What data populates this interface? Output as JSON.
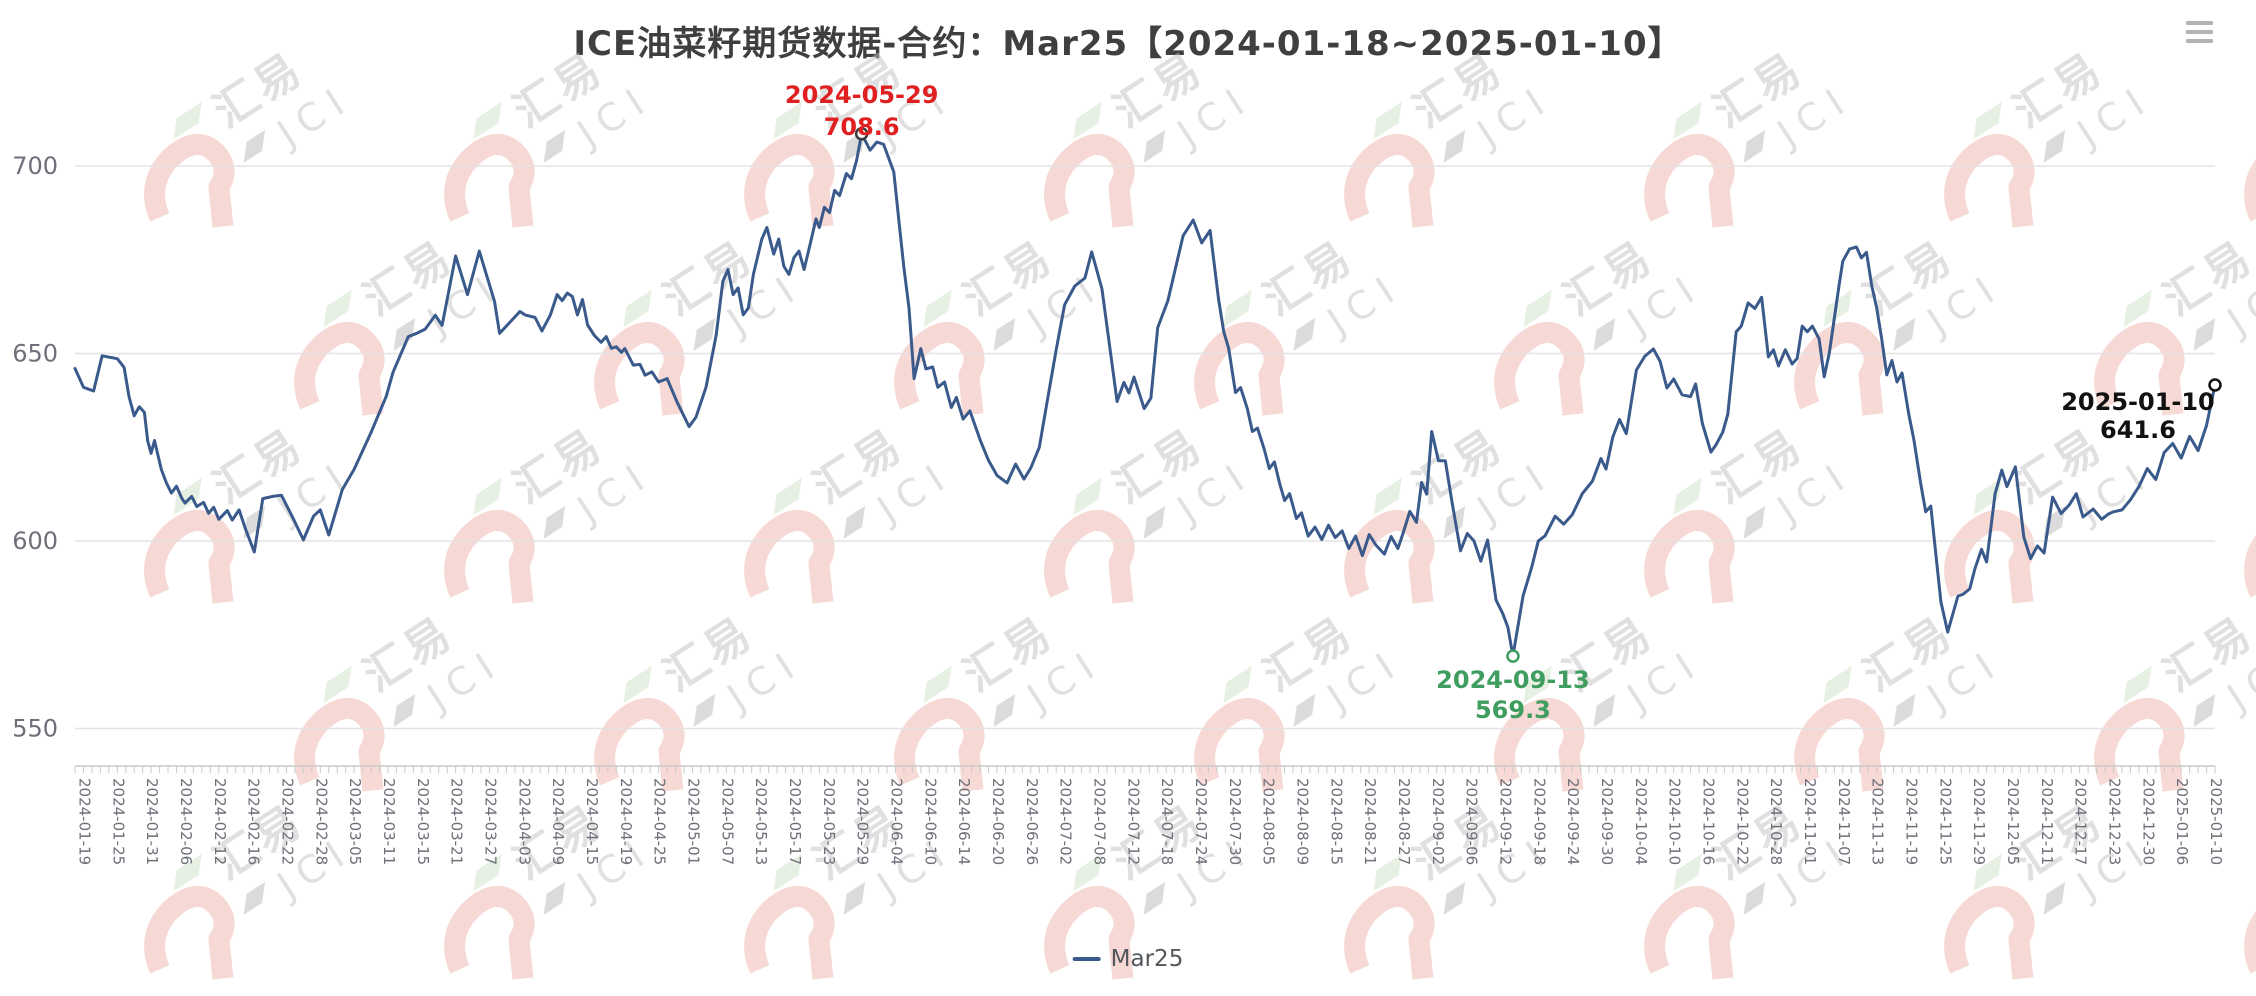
{
  "header": {
    "title": "ICE油菜籽期货数据-合约：Mar25【2024-01-18~2025-01-10】"
  },
  "toolbar": {
    "menu_icon": "hamburger-menu-icon"
  },
  "legend": {
    "label": "Mar25"
  },
  "watermark": {
    "brand_cn": "汇易",
    "brand_en": "JCI"
  },
  "chart_data": {
    "type": "line",
    "title": "ICE油菜籽期货数据-合约：Mar25【2024-01-18~2025-01-10】",
    "series_name": "Mar25",
    "xlabel": "",
    "ylabel": "",
    "ylim": [
      540,
      710
    ],
    "y_ticks": [
      550,
      600,
      650,
      700
    ],
    "grid": true,
    "legend_position": "bottom",
    "colors": {
      "line": "#3a5a8c",
      "max_annotation": "#e02020",
      "min_annotation": "#3f9d60",
      "last_annotation": "#111111",
      "axis_label": "#6e7079",
      "grid_line": "#e3e3e3",
      "axis_line": "#c9c9c9",
      "watermark_pink": "#efb3ab",
      "watermark_gray": "#c2c2c2",
      "watermark_green": "#cfe4c9"
    },
    "annotations": {
      "max": {
        "date": "2024-05-29",
        "value": 708.6,
        "i": 23
      },
      "min": {
        "date": "2024-09-13",
        "value": 569.3,
        "i": 42.25
      },
      "last": {
        "date": "2025-01-10",
        "value": 641.6,
        "i": 63
      }
    },
    "x_labels": [
      "2024-01-19",
      "2024-01-25",
      "2024-01-31",
      "2024-02-06",
      "2024-02-12",
      "2024-02-16",
      "2024-02-22",
      "2024-02-28",
      "2024-03-05",
      "2024-03-11",
      "2024-03-15",
      "2024-03-21",
      "2024-03-27",
      "2024-04-03",
      "2024-04-09",
      "2024-04-15",
      "2024-04-19",
      "2024-04-25",
      "2024-05-01",
      "2024-05-07",
      "2024-05-13",
      "2024-05-17",
      "2024-05-23",
      "2024-05-29",
      "2024-06-04",
      "2024-06-10",
      "2024-06-14",
      "2024-06-20",
      "2024-06-26",
      "2024-07-02",
      "2024-07-08",
      "2024-07-12",
      "2024-07-18",
      "2024-07-24",
      "2024-07-30",
      "2024-08-05",
      "2024-08-09",
      "2024-08-15",
      "2024-08-21",
      "2024-08-27",
      "2024-09-02",
      "2024-09-06",
      "2024-09-12",
      "2024-09-18",
      "2024-09-24",
      "2024-09-30",
      "2024-10-04",
      "2024-10-10",
      "2024-10-16",
      "2024-10-22",
      "2024-10-28",
      "2024-11-01",
      "2024-11-07",
      "2024-11-13",
      "2024-11-19",
      "2024-11-25",
      "2024-11-29",
      "2024-12-05",
      "2024-12-11",
      "2024-12-17",
      "2024-12-23",
      "2024-12-30",
      "2025-01-06",
      "2025-01-10"
    ],
    "points": [
      [
        -0.25,
        646
      ],
      [
        0,
        641
      ],
      [
        0.3,
        640
      ],
      [
        0.55,
        649.4
      ],
      [
        1,
        648.6
      ],
      [
        1.2,
        646.3
      ],
      [
        1.35,
        638.4
      ],
      [
        1.5,
        633.4
      ],
      [
        1.65,
        635.8
      ],
      [
        1.8,
        634.3
      ],
      [
        1.9,
        626.7
      ],
      [
        2,
        623.4
      ],
      [
        2.1,
        626.8
      ],
      [
        2.3,
        619.1
      ],
      [
        2.45,
        615.5
      ],
      [
        2.6,
        612.8
      ],
      [
        2.75,
        614.6
      ],
      [
        2.9,
        611.5
      ],
      [
        3,
        610.1
      ],
      [
        3.2,
        611.9
      ],
      [
        3.35,
        609.2
      ],
      [
        3.55,
        610.3
      ],
      [
        3.7,
        607.4
      ],
      [
        3.85,
        609
      ],
      [
        4,
        605.8
      ],
      [
        4.25,
        608.1
      ],
      [
        4.4,
        605.6
      ],
      [
        4.6,
        608.3
      ],
      [
        4.8,
        602.9
      ],
      [
        5.05,
        597.1
      ],
      [
        5.3,
        611.3
      ],
      [
        5.6,
        611.9
      ],
      [
        5.85,
        612.2
      ],
      [
        6.2,
        606
      ],
      [
        6.5,
        600.3
      ],
      [
        6.8,
        606.6
      ],
      [
        7,
        608.3
      ],
      [
        7.25,
        601.6
      ],
      [
        7.65,
        613.7
      ],
      [
        8,
        619.1
      ],
      [
        8.5,
        628.9
      ],
      [
        8.95,
        638.6
      ],
      [
        9.15,
        645
      ],
      [
        9.6,
        654.5
      ],
      [
        9.85,
        655.4
      ],
      [
        10.1,
        656.5
      ],
      [
        10.4,
        660.2
      ],
      [
        10.6,
        657.5
      ],
      [
        11,
        676
      ],
      [
        11.35,
        665.7
      ],
      [
        11.7,
        677.3
      ],
      [
        12.15,
        663.9
      ],
      [
        12.3,
        655.4
      ],
      [
        12.6,
        658.3
      ],
      [
        12.9,
        661.2
      ],
      [
        13.05,
        660.3
      ],
      [
        13.35,
        659.6
      ],
      [
        13.55,
        656
      ],
      [
        13.8,
        660.3
      ],
      [
        14,
        665.7
      ],
      [
        14.15,
        664.1
      ],
      [
        14.3,
        666.1
      ],
      [
        14.45,
        665.2
      ],
      [
        14.6,
        660.3
      ],
      [
        14.75,
        664.4
      ],
      [
        14.9,
        657.6
      ],
      [
        15.1,
        654.8
      ],
      [
        15.3,
        653
      ],
      [
        15.45,
        654.5
      ],
      [
        15.6,
        651.4
      ],
      [
        15.75,
        651.8
      ],
      [
        15.9,
        650.3
      ],
      [
        16,
        651.3
      ],
      [
        16.25,
        646.9
      ],
      [
        16.45,
        647.1
      ],
      [
        16.6,
        644.2
      ],
      [
        16.8,
        645.1
      ],
      [
        17,
        642.4
      ],
      [
        17.25,
        643.3
      ],
      [
        17.55,
        637
      ],
      [
        17.9,
        630.5
      ],
      [
        18.1,
        633
      ],
      [
        18.4,
        641
      ],
      [
        18.7,
        654.9
      ],
      [
        18.9,
        669.3
      ],
      [
        19.05,
        672.4
      ],
      [
        19.2,
        665.7
      ],
      [
        19.35,
        667.5
      ],
      [
        19.5,
        660.3
      ],
      [
        19.65,
        662.1
      ],
      [
        19.8,
        671.1
      ],
      [
        20.05,
        680.5
      ],
      [
        20.2,
        683.6
      ],
      [
        20.4,
        676.5
      ],
      [
        20.55,
        680.5
      ],
      [
        20.7,
        673.3
      ],
      [
        20.85,
        671.1
      ],
      [
        21,
        675.6
      ],
      [
        21.15,
        677.3
      ],
      [
        21.3,
        672.4
      ],
      [
        21.5,
        680
      ],
      [
        21.65,
        685.9
      ],
      [
        21.75,
        683.6
      ],
      [
        21.9,
        689
      ],
      [
        22.05,
        687.6
      ],
      [
        22.2,
        693.5
      ],
      [
        22.35,
        692.1
      ],
      [
        22.55,
        698
      ],
      [
        22.7,
        696.6
      ],
      [
        22.85,
        701.5
      ],
      [
        23,
        708.6
      ],
      [
        23.25,
        704.2
      ],
      [
        23.45,
        706.4
      ],
      [
        23.65,
        705.8
      ],
      [
        23.95,
        698.4
      ],
      [
        24.1,
        685.4
      ],
      [
        24.25,
        672.9
      ],
      [
        24.4,
        662.1
      ],
      [
        24.55,
        643.3
      ],
      [
        24.75,
        651.3
      ],
      [
        24.9,
        645.9
      ],
      [
        25.1,
        646.4
      ],
      [
        25.25,
        641
      ],
      [
        25.45,
        642.4
      ],
      [
        25.65,
        635.6
      ],
      [
        25.8,
        638.3
      ],
      [
        26,
        632.5
      ],
      [
        26.2,
        634.7
      ],
      [
        26.5,
        627
      ],
      [
        26.75,
        621.5
      ],
      [
        27,
        617.5
      ],
      [
        27.3,
        615.5
      ],
      [
        27.55,
        620.5
      ],
      [
        27.8,
        616.5
      ],
      [
        28,
        619.5
      ],
      [
        28.25,
        625
      ],
      [
        28.5,
        638
      ],
      [
        28.75,
        651
      ],
      [
        29,
        663
      ],
      [
        29.3,
        668
      ],
      [
        29.6,
        670.1
      ],
      [
        29.8,
        677.1
      ],
      [
        30.1,
        667.3
      ],
      [
        30.55,
        637.2
      ],
      [
        30.75,
        642.3
      ],
      [
        30.9,
        639.5
      ],
      [
        31.05,
        643.7
      ],
      [
        31.35,
        635.3
      ],
      [
        31.55,
        638.1
      ],
      [
        31.75,
        656.9
      ],
      [
        32.05,
        664
      ],
      [
        32.5,
        681.4
      ],
      [
        32.8,
        685.6
      ],
      [
        33.05,
        679.5
      ],
      [
        33.3,
        682.8
      ],
      [
        33.55,
        664.4
      ],
      [
        33.7,
        655.9
      ],
      [
        33.85,
        651.3
      ],
      [
        34.05,
        639.6
      ],
      [
        34.2,
        640.9
      ],
      [
        34.4,
        635.3
      ],
      [
        34.55,
        629.2
      ],
      [
        34.7,
        630.1
      ],
      [
        34.9,
        624.4
      ],
      [
        35.05,
        619.3
      ],
      [
        35.2,
        621.1
      ],
      [
        35.35,
        615.5
      ],
      [
        35.5,
        610.8
      ],
      [
        35.65,
        612.6
      ],
      [
        35.85,
        606
      ],
      [
        36,
        607.5
      ],
      [
        36.2,
        601.3
      ],
      [
        36.4,
        603.7
      ],
      [
        36.6,
        600.4
      ],
      [
        36.8,
        604.2
      ],
      [
        37,
        600.9
      ],
      [
        37.2,
        602.7
      ],
      [
        37.4,
        598
      ],
      [
        37.6,
        601.3
      ],
      [
        37.8,
        596.1
      ],
      [
        38,
        601.7
      ],
      [
        38.2,
        598.9
      ],
      [
        38.45,
        596.5
      ],
      [
        38.65,
        601.2
      ],
      [
        38.85,
        598
      ],
      [
        39,
        602
      ],
      [
        39.2,
        607.9
      ],
      [
        39.4,
        605
      ],
      [
        39.55,
        615.6
      ],
      [
        39.7,
        612.5
      ],
      [
        39.85,
        629.2
      ],
      [
        40.05,
        621.4
      ],
      [
        40.25,
        621.4
      ],
      [
        40.45,
        610.4
      ],
      [
        40.7,
        597.4
      ],
      [
        40.9,
        602
      ],
      [
        41.1,
        600
      ],
      [
        41.3,
        594.6
      ],
      [
        41.5,
        600.3
      ],
      [
        41.75,
        584.3
      ],
      [
        41.95,
        580.6
      ],
      [
        42.1,
        577
      ],
      [
        42.25,
        569.3
      ],
      [
        42.55,
        585.4
      ],
      [
        42.8,
        592.9
      ],
      [
        43,
        600
      ],
      [
        43.2,
        601.4
      ],
      [
        43.5,
        606.6
      ],
      [
        43.75,
        604.5
      ],
      [
        44,
        607
      ],
      [
        44.3,
        612.6
      ],
      [
        44.6,
        616
      ],
      [
        44.85,
        622
      ],
      [
        45,
        619.2
      ],
      [
        45.2,
        627.7
      ],
      [
        45.4,
        632.4
      ],
      [
        45.6,
        628.6
      ],
      [
        45.9,
        645.6
      ],
      [
        46.15,
        649.3
      ],
      [
        46.4,
        651.2
      ],
      [
        46.6,
        647.9
      ],
      [
        46.8,
        640.8
      ],
      [
        47,
        643.2
      ],
      [
        47.25,
        639
      ],
      [
        47.5,
        638.5
      ],
      [
        47.65,
        641.9
      ],
      [
        47.85,
        631.3
      ],
      [
        48.1,
        623.7
      ],
      [
        48.25,
        625.6
      ],
      [
        48.45,
        629
      ],
      [
        48.6,
        633.8
      ],
      [
        48.85,
        655.8
      ],
      [
        49,
        657.3
      ],
      [
        49.2,
        663.5
      ],
      [
        49.4,
        662
      ],
      [
        49.6,
        665
      ],
      [
        49.8,
        649.1
      ],
      [
        49.95,
        651
      ],
      [
        50.1,
        646.7
      ],
      [
        50.3,
        651
      ],
      [
        50.5,
        647.2
      ],
      [
        50.65,
        648.7
      ],
      [
        50.8,
        657.3
      ],
      [
        50.95,
        655.8
      ],
      [
        51.1,
        657.3
      ],
      [
        51.3,
        653.9
      ],
      [
        51.45,
        643.8
      ],
      [
        51.6,
        650.1
      ],
      [
        51.9,
        668.8
      ],
      [
        52,
        674.6
      ],
      [
        52.2,
        677.9
      ],
      [
        52.4,
        678.4
      ],
      [
        52.55,
        675.5
      ],
      [
        52.7,
        677
      ],
      [
        52.85,
        668.3
      ],
      [
        53,
        662.1
      ],
      [
        53.15,
        653.9
      ],
      [
        53.3,
        644.3
      ],
      [
        53.45,
        648.1
      ],
      [
        53.6,
        642.4
      ],
      [
        53.75,
        644.8
      ],
      [
        53.95,
        633.8
      ],
      [
        54.1,
        627
      ],
      [
        54.3,
        615.5
      ],
      [
        54.45,
        607.8
      ],
      [
        54.6,
        609.3
      ],
      [
        54.75,
        596.3
      ],
      [
        54.9,
        583.8
      ],
      [
        55.1,
        575.7
      ],
      [
        55.25,
        580.5
      ],
      [
        55.4,
        585.3
      ],
      [
        55.55,
        585.8
      ],
      [
        55.75,
        587.2
      ],
      [
        55.9,
        592.5
      ],
      [
        56.1,
        597.8
      ],
      [
        56.25,
        594.4
      ],
      [
        56.5,
        612.6
      ],
      [
        56.7,
        618.9
      ],
      [
        56.85,
        614.5
      ],
      [
        57.1,
        619.8
      ],
      [
        57.35,
        601.1
      ],
      [
        57.55,
        595.3
      ],
      [
        57.75,
        598.7
      ],
      [
        57.95,
        596.8
      ],
      [
        58.2,
        611.7
      ],
      [
        58.45,
        607.3
      ],
      [
        58.7,
        609.7
      ],
      [
        58.9,
        612.6
      ],
      [
        59.1,
        606.4
      ],
      [
        59.4,
        608.5
      ],
      [
        59.65,
        605.8
      ],
      [
        59.85,
        607.2
      ],
      [
        60,
        607.8
      ],
      [
        60.25,
        608.3
      ],
      [
        60.5,
        611
      ],
      [
        60.75,
        614.5
      ],
      [
        61,
        619.3
      ],
      [
        61.25,
        616.4
      ],
      [
        61.5,
        623.6
      ],
      [
        61.75,
        626
      ],
      [
        62,
        622.1
      ],
      [
        62.25,
        627.9
      ],
      [
        62.5,
        624.1
      ],
      [
        62.75,
        630.8
      ],
      [
        63,
        641.6
      ]
    ]
  }
}
